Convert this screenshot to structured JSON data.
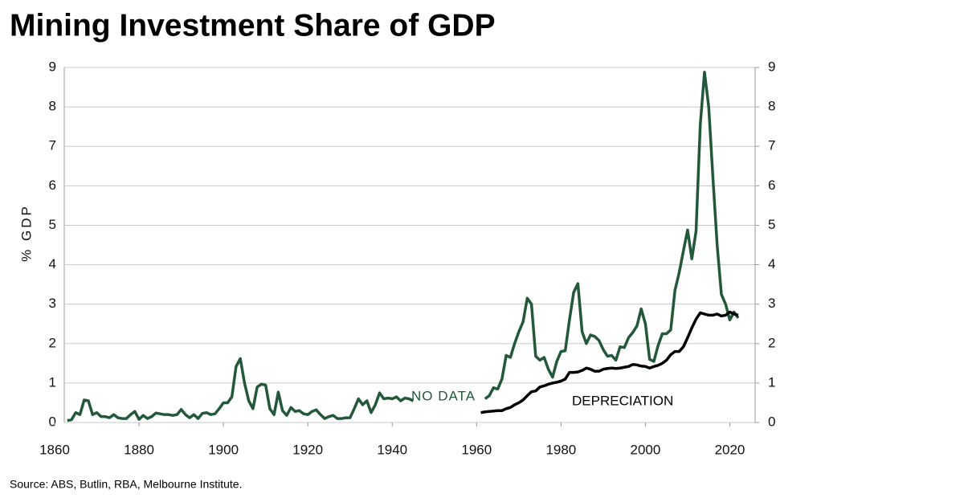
{
  "chart_data": {
    "type": "line",
    "title": "Mining Investment Share of GDP",
    "y_label": "% GDP",
    "source": "Source: ABS, Butlin, RBA, Melbourne Institute.",
    "annotations": [
      "NO DATA"
    ],
    "x": [
      1863,
      1864,
      1865,
      1866,
      1867,
      1868,
      1869,
      1870,
      1871,
      1872,
      1873,
      1874,
      1875,
      1876,
      1877,
      1878,
      1879,
      1880,
      1881,
      1882,
      1883,
      1884,
      1885,
      1886,
      1887,
      1888,
      1889,
      1890,
      1891,
      1892,
      1893,
      1894,
      1895,
      1896,
      1897,
      1898,
      1899,
      1900,
      1901,
      1902,
      1903,
      1904,
      1905,
      1906,
      1907,
      1908,
      1909,
      1910,
      1911,
      1912,
      1913,
      1914,
      1915,
      1916,
      1917,
      1918,
      1919,
      1920,
      1921,
      1922,
      1923,
      1924,
      1925,
      1926,
      1927,
      1928,
      1929,
      1930,
      1931,
      1932,
      1933,
      1934,
      1935,
      1936,
      1937,
      1938,
      1939,
      1940,
      1941,
      1942,
      1943,
      1944,
      1945,
      1946,
      1947,
      1948,
      1949,
      1950,
      1951,
      1952,
      1953,
      1954,
      1955,
      1956,
      1957,
      1958,
      1959,
      1960,
      1961,
      1962,
      1963,
      1964,
      1965,
      1966,
      1967,
      1968,
      1969,
      1970,
      1971,
      1972,
      1973,
      1974,
      1975,
      1976,
      1977,
      1978,
      1979,
      1980,
      1981,
      1982,
      1983,
      1984,
      1985,
      1986,
      1987,
      1988,
      1989,
      1990,
      1991,
      1992,
      1993,
      1994,
      1995,
      1996,
      1997,
      1998,
      1999,
      2000,
      2001,
      2002,
      2003,
      2004,
      2005,
      2006,
      2007,
      2008,
      2009,
      2010,
      2011,
      2012,
      2013,
      2014,
      2015,
      2016,
      2017,
      2018,
      2019,
      2020,
      2021,
      2022
    ],
    "series": [
      {
        "color": "#23583a",
        "values": [
          0.05,
          0.07,
          0.25,
          0.2,
          0.57,
          0.55,
          0.2,
          0.25,
          0.15,
          0.15,
          0.12,
          0.2,
          0.12,
          0.1,
          0.1,
          0.2,
          0.28,
          0.08,
          0.18,
          0.1,
          0.15,
          0.24,
          0.22,
          0.2,
          0.2,
          0.18,
          0.2,
          0.33,
          0.2,
          0.12,
          0.2,
          0.1,
          0.23,
          0.25,
          0.2,
          0.22,
          0.35,
          0.5,
          0.5,
          0.65,
          1.42,
          1.62,
          1.0,
          0.55,
          0.35,
          0.9,
          0.97,
          0.95,
          0.35,
          0.2,
          0.77,
          0.3,
          0.18,
          0.38,
          0.28,
          0.3,
          0.22,
          0.2,
          0.28,
          0.32,
          0.2,
          0.1,
          0.15,
          0.18,
          0.1,
          0.1,
          0.12,
          0.12,
          0.35,
          0.6,
          0.45,
          0.55,
          0.25,
          0.45,
          0.75,
          0.6,
          0.62,
          0.6,
          0.65,
          0.55,
          0.62,
          0.6,
          0.55,
          null,
          null,
          null,
          null,
          null,
          null,
          null,
          null,
          null,
          null,
          null,
          null,
          null,
          null,
          null,
          null,
          0.6,
          0.68,
          0.88,
          0.85,
          1.1,
          1.7,
          1.65,
          2.0,
          2.3,
          2.55,
          3.15,
          3.0,
          1.68,
          1.58,
          1.65,
          1.35,
          1.15,
          1.55,
          1.8,
          1.82,
          2.6,
          3.3,
          3.52,
          2.3,
          2.0,
          2.22,
          2.18,
          2.08,
          1.85,
          1.68,
          1.7,
          1.58,
          1.92,
          1.9,
          2.15,
          2.28,
          2.45,
          2.88,
          2.5,
          1.6,
          1.55,
          1.95,
          2.25,
          2.25,
          2.35,
          3.35,
          3.8,
          4.35,
          4.88,
          4.15,
          4.85,
          7.55,
          8.88,
          8.0,
          6.2,
          4.5,
          3.25,
          3.0,
          2.6,
          2.8,
          2.65
        ]
      },
      {
        "name": "DEPRECIATION",
        "color": "#000000",
        "values": [
          null,
          null,
          null,
          null,
          null,
          null,
          null,
          null,
          null,
          null,
          null,
          null,
          null,
          null,
          null,
          null,
          null,
          null,
          null,
          null,
          null,
          null,
          null,
          null,
          null,
          null,
          null,
          null,
          null,
          null,
          null,
          null,
          null,
          null,
          null,
          null,
          null,
          null,
          null,
          null,
          null,
          null,
          null,
          null,
          null,
          null,
          null,
          null,
          null,
          null,
          null,
          null,
          null,
          null,
          null,
          null,
          null,
          null,
          null,
          null,
          null,
          null,
          null,
          null,
          null,
          null,
          null,
          null,
          null,
          null,
          null,
          null,
          null,
          null,
          null,
          null,
          null,
          null,
          null,
          null,
          null,
          null,
          null,
          null,
          null,
          null,
          null,
          null,
          null,
          null,
          null,
          null,
          null,
          null,
          null,
          null,
          null,
          null,
          0.25,
          0.27,
          0.28,
          0.29,
          0.3,
          0.3,
          0.35,
          0.38,
          0.45,
          0.5,
          0.57,
          0.68,
          0.78,
          0.8,
          0.9,
          0.93,
          0.97,
          1.0,
          1.02,
          1.05,
          1.1,
          1.27,
          1.27,
          1.28,
          1.32,
          1.38,
          1.35,
          1.3,
          1.3,
          1.35,
          1.37,
          1.38,
          1.37,
          1.38,
          1.4,
          1.42,
          1.47,
          1.46,
          1.43,
          1.42,
          1.38,
          1.42,
          1.45,
          1.5,
          1.58,
          1.72,
          1.8,
          1.8,
          1.92,
          2.15,
          2.4,
          2.62,
          2.78,
          2.75,
          2.72,
          2.72,
          2.75,
          2.7,
          2.72,
          2.8,
          2.75,
          2.72
        ]
      }
    ],
    "xlim": [
      1860,
      2026
    ],
    "xticks": [
      1860,
      1880,
      1900,
      1920,
      1940,
      1960,
      1980,
      2000,
      2020
    ],
    "ylim": [
      0,
      9
    ],
    "yticks": [
      0,
      1,
      2,
      3,
      4,
      5,
      6,
      7,
      8,
      9
    ],
    "y2lim": [
      0,
      9
    ],
    "y2ticks": [
      0,
      1,
      2,
      3,
      4,
      5,
      6,
      7,
      8,
      9
    ],
    "grid": true
  }
}
